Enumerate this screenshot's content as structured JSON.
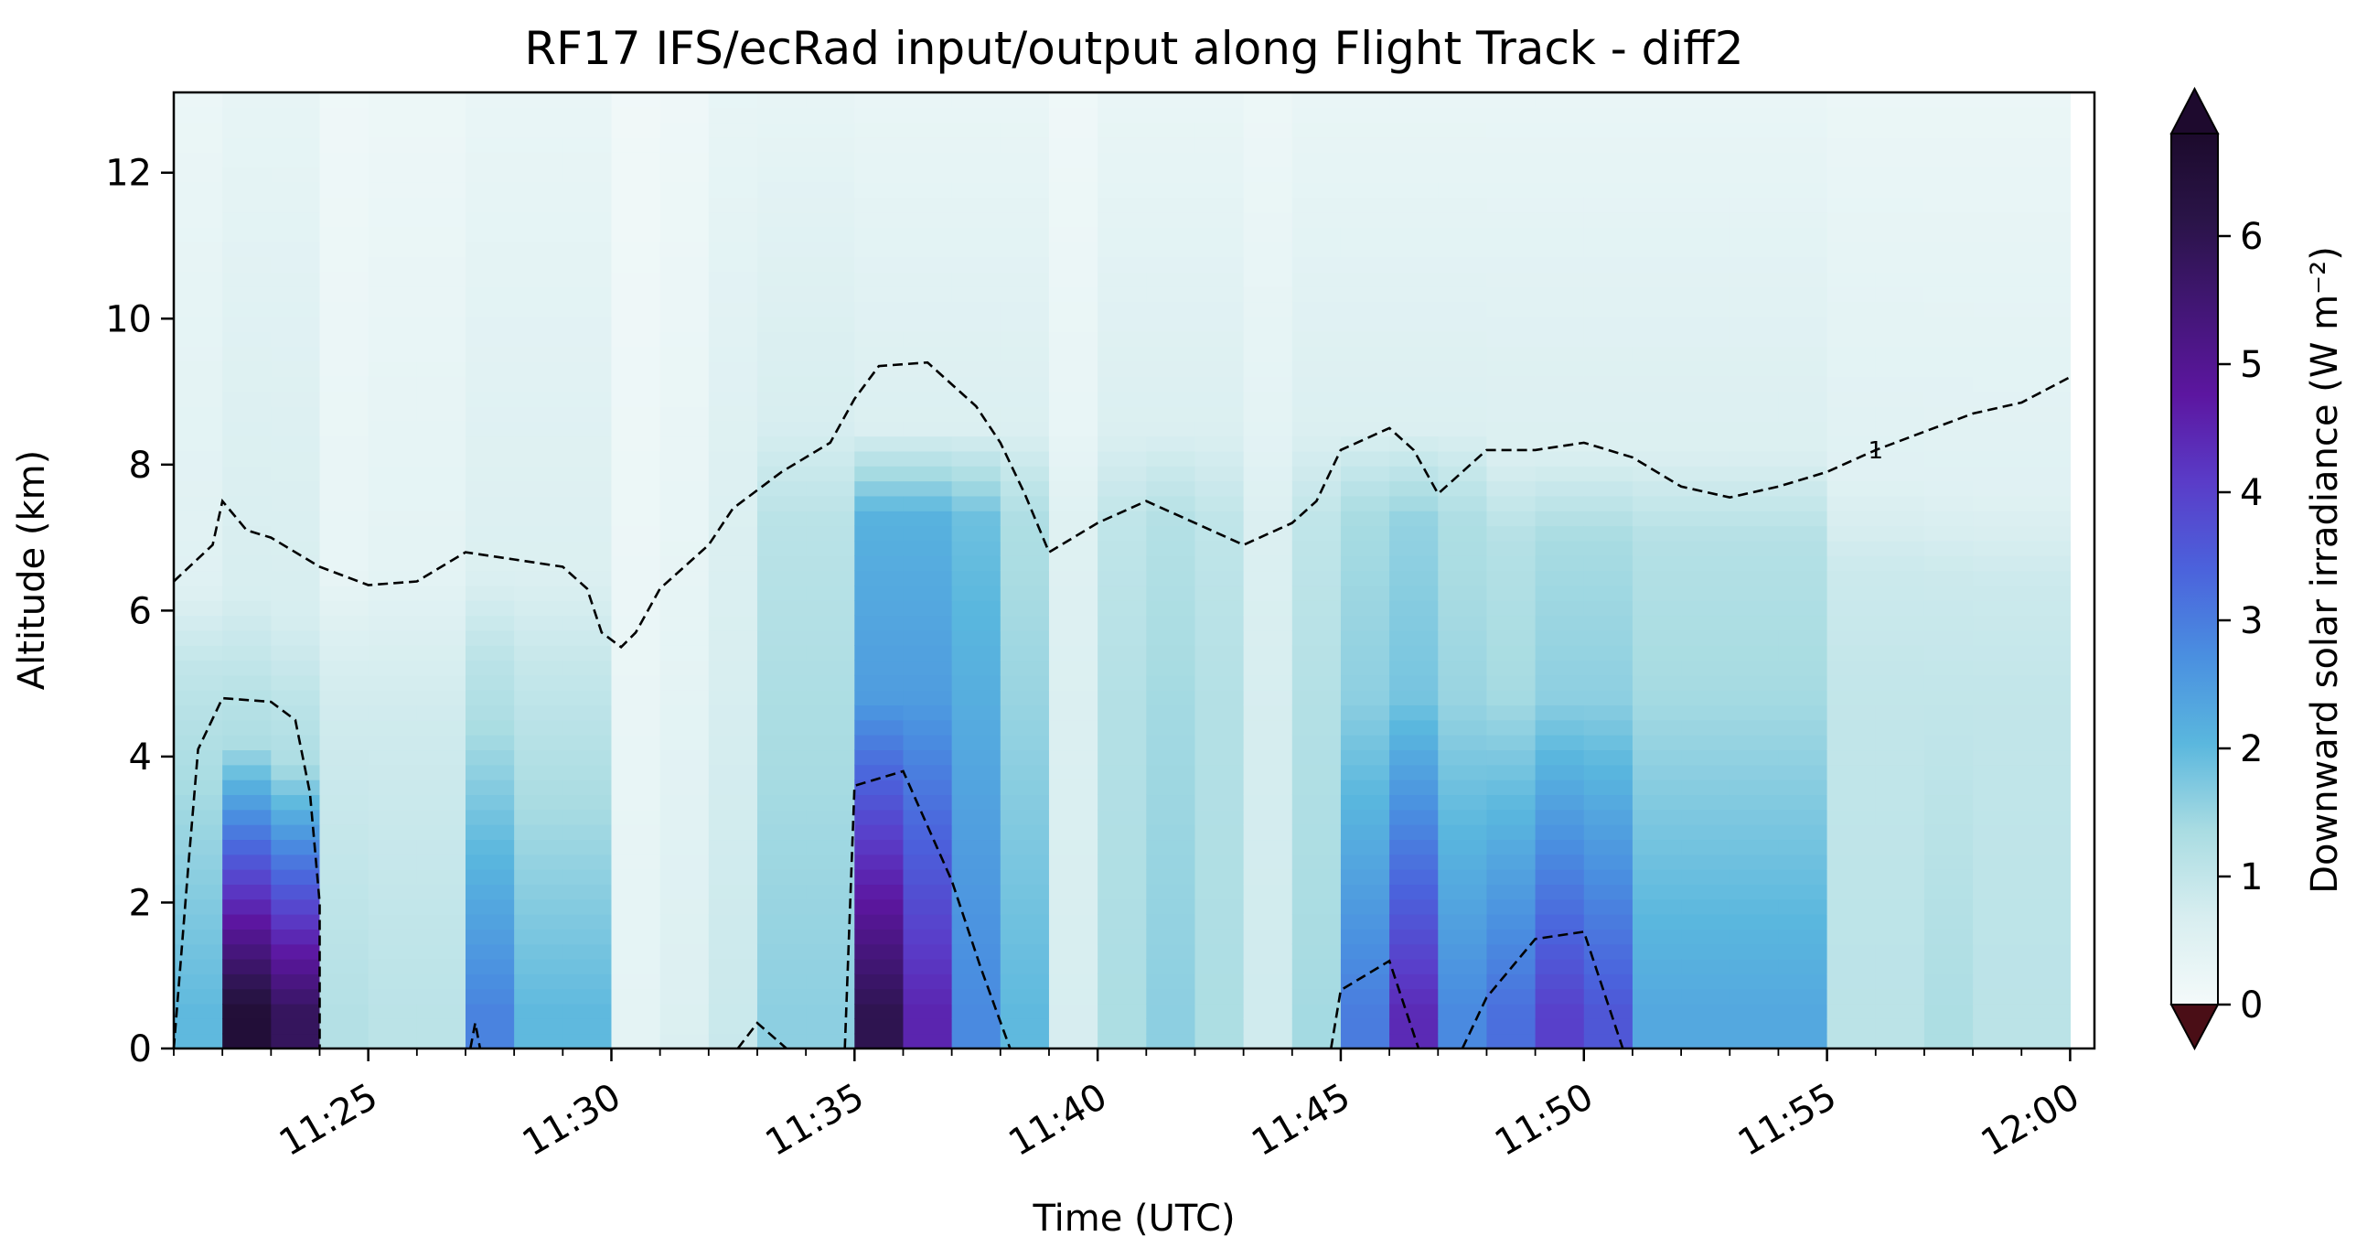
{
  "chart_data": {
    "type": "heatmap",
    "title": "RF17 IFS/ecRad input/output along Flight Track - diff2",
    "xlabel": "Time (UTC)",
    "ylabel": "Altitude (km)",
    "xlim": [
      "11:21",
      "12:00.5"
    ],
    "ylim": [
      0,
      13.1
    ],
    "x_ticks": [
      "11:25",
      "11:30",
      "11:35",
      "11:40",
      "11:45",
      "11:50",
      "11:55",
      "12:00"
    ],
    "y_ticks": [
      "0",
      "2",
      "4",
      "6",
      "8",
      "10",
      "12"
    ],
    "colorbar": {
      "label": "Downward solar irradiance (W m⁻²)",
      "ticks": [
        "0",
        "1",
        "2",
        "3",
        "4",
        "5",
        "6"
      ],
      "range": [
        0,
        6.8
      ],
      "extend": "both",
      "under_color": "#4a0e16",
      "over_color": "#1e0a2e"
    },
    "columns": [
      {
        "time": "11:21.5",
        "top_value": 0.5,
        "mid_value": 1.2,
        "low_value": 2.0,
        "cloud_top_km": 5.2
      },
      {
        "time": "11:22.5",
        "top_value": 0.7,
        "mid_value": 1.3,
        "low_value": 6.5,
        "cloud_top_km": 5.0
      },
      {
        "time": "11:23.5",
        "top_value": 0.7,
        "mid_value": 1.3,
        "low_value": 5.8,
        "cloud_top_km": 4.7
      },
      {
        "time": "11:24.5",
        "top_value": 0.3,
        "mid_value": 0.8,
        "low_value": 1.2,
        "cloud_top_km": 5.3
      },
      {
        "time": "11:25.5",
        "top_value": 0.4,
        "mid_value": 0.8,
        "low_value": 1.1,
        "cloud_top_km": 5.3
      },
      {
        "time": "11:26.5",
        "top_value": 0.4,
        "mid_value": 0.8,
        "low_value": 1.1,
        "cloud_top_km": 5.3
      },
      {
        "time": "11:27.5",
        "top_value": 0.6,
        "mid_value": 1.3,
        "low_value": 2.9,
        "cloud_top_km": 5.3
      },
      {
        "time": "11:28.5",
        "top_value": 0.6,
        "mid_value": 1.1,
        "low_value": 2.0,
        "cloud_top_km": 5.3
      },
      {
        "time": "11:29.5",
        "top_value": 0.6,
        "mid_value": 1.1,
        "low_value": 2.0,
        "cloud_top_km": 5.3
      },
      {
        "time": "11:30.5",
        "top_value": 0.2,
        "mid_value": 0.4,
        "low_value": 0.5,
        "cloud_top_km": 0
      },
      {
        "time": "11:31.5",
        "top_value": 0.3,
        "mid_value": 0.6,
        "low_value": 0.8,
        "cloud_top_km": 0
      },
      {
        "time": "11:32.5",
        "top_value": 0.6,
        "mid_value": 0.9,
        "low_value": 1.0,
        "cloud_top_km": 0
      },
      {
        "time": "11:33.5",
        "top_value": 0.7,
        "mid_value": 1.3,
        "low_value": 1.6,
        "cloud_top_km": 7.3
      },
      {
        "time": "11:34.5",
        "top_value": 0.7,
        "mid_value": 1.3,
        "low_value": 1.6,
        "cloud_top_km": 7.3
      },
      {
        "time": "11:35.5",
        "top_value": 0.6,
        "mid_value": 2.5,
        "low_value": 6.0,
        "cloud_top_km": 7.3
      },
      {
        "time": "11:36.5",
        "top_value": 0.6,
        "mid_value": 2.5,
        "low_value": 4.5,
        "cloud_top_km": 7.3
      },
      {
        "time": "11:37.5",
        "top_value": 0.6,
        "mid_value": 2.2,
        "low_value": 2.8,
        "cloud_top_km": 7.3
      },
      {
        "time": "11:38.5",
        "top_value": 0.6,
        "mid_value": 1.5,
        "low_value": 2.0,
        "cloud_top_km": 7.3
      },
      {
        "time": "11:39.5",
        "top_value": 0.3,
        "mid_value": 0.6,
        "low_value": 0.7,
        "cloud_top_km": 7.3
      },
      {
        "time": "11:40.5",
        "top_value": 0.6,
        "mid_value": 1.2,
        "low_value": 1.3,
        "cloud_top_km": 7.3
      },
      {
        "time": "11:41.5",
        "top_value": 0.6,
        "mid_value": 1.4,
        "low_value": 1.6,
        "cloud_top_km": 7.3
      },
      {
        "time": "11:42.5",
        "top_value": 0.6,
        "mid_value": 1.2,
        "low_value": 1.3,
        "cloud_top_km": 7.3
      },
      {
        "time": "11:43.5",
        "top_value": 0.4,
        "mid_value": 0.7,
        "low_value": 0.8,
        "cloud_top_km": 7.3
      },
      {
        "time": "11:44.5",
        "top_value": 0.6,
        "mid_value": 1.2,
        "low_value": 1.4,
        "cloud_top_km": 7.3
      },
      {
        "time": "11:45.5",
        "top_value": 0.6,
        "mid_value": 1.6,
        "low_value": 3.0,
        "cloud_top_km": 7.3
      },
      {
        "time": "11:46.5",
        "top_value": 0.6,
        "mid_value": 1.8,
        "low_value": 4.4,
        "cloud_top_km": 7.3
      },
      {
        "time": "11:47.5",
        "top_value": 0.6,
        "mid_value": 1.5,
        "low_value": 2.8,
        "cloud_top_km": 7.3
      },
      {
        "time": "11:48.5",
        "top_value": 0.6,
        "mid_value": 1.4,
        "low_value": 3.2,
        "cloud_top_km": 7.0
      },
      {
        "time": "11:49.5",
        "top_value": 0.6,
        "mid_value": 1.6,
        "low_value": 4.0,
        "cloud_top_km": 7.0
      },
      {
        "time": "11:50.5",
        "top_value": 0.6,
        "mid_value": 1.6,
        "low_value": 3.6,
        "cloud_top_km": 7.0
      },
      {
        "time": "11:51.5",
        "top_value": 0.6,
        "mid_value": 1.4,
        "low_value": 2.3,
        "cloud_top_km": 7.0
      },
      {
        "time": "11:52.5",
        "top_value": 0.6,
        "mid_value": 1.4,
        "low_value": 2.3,
        "cloud_top_km": 7.0
      },
      {
        "time": "11:53.5",
        "top_value": 0.6,
        "mid_value": 1.4,
        "low_value": 2.3,
        "cloud_top_km": 7.0
      },
      {
        "time": "11:54.5",
        "top_value": 0.6,
        "mid_value": 1.4,
        "low_value": 2.3,
        "cloud_top_km": 7.0
      },
      {
        "time": "11:55.5",
        "top_value": 0.5,
        "mid_value": 1.0,
        "low_value": 1.1,
        "cloud_top_km": 6.6
      },
      {
        "time": "11:56.5",
        "top_value": 0.5,
        "mid_value": 1.0,
        "low_value": 1.1,
        "cloud_top_km": 6.6
      },
      {
        "time": "11:57.5",
        "top_value": 0.5,
        "mid_value": 1.0,
        "low_value": 1.3,
        "cloud_top_km": 6.5
      },
      {
        "time": "11:58.5",
        "top_value": 0.5,
        "mid_value": 1.0,
        "low_value": 1.1,
        "cloud_top_km": 6.4
      },
      {
        "time": "11:59.5",
        "top_value": 0.5,
        "mid_value": 1.0,
        "low_value": 1.1,
        "cloud_top_km": 6.4
      }
    ],
    "contours": [
      {
        "level": "1",
        "label_at": "11:56",
        "points": [
          [
            "11:21",
            6.4
          ],
          [
            "11:21.8",
            6.9
          ],
          [
            "11:22",
            7.5
          ],
          [
            "11:22.5",
            7.1
          ],
          [
            "11:23",
            7.0
          ],
          [
            "11:24",
            6.6
          ],
          [
            "11:25",
            6.35
          ],
          [
            "11:26",
            6.4
          ],
          [
            "11:27",
            6.8
          ],
          [
            "11:28",
            6.7
          ],
          [
            "11:29",
            6.6
          ],
          [
            "11:29.5",
            6.3
          ],
          [
            "11:29.8",
            5.7
          ],
          [
            "11:30.2",
            5.5
          ],
          [
            "11:30.5",
            5.7
          ],
          [
            "11:31",
            6.3
          ],
          [
            "11:32",
            6.9
          ],
          [
            "11:32.5",
            7.4
          ],
          [
            "11:33.5",
            7.9
          ],
          [
            "11:34.5",
            8.3
          ],
          [
            "11:35",
            8.9
          ],
          [
            "11:35.5",
            9.35
          ],
          [
            "11:36.5",
            9.4
          ],
          [
            "11:37.5",
            8.8
          ],
          [
            "11:38",
            8.3
          ],
          [
            "11:38.5",
            7.6
          ],
          [
            "11:39",
            6.8
          ],
          [
            "11:40",
            7.2
          ],
          [
            "11:41",
            7.5
          ],
          [
            "11:42",
            7.2
          ],
          [
            "11:43",
            6.9
          ],
          [
            "11:44",
            7.2
          ],
          [
            "11:44.5",
            7.5
          ],
          [
            "11:45",
            8.2
          ],
          [
            "11:46",
            8.5
          ],
          [
            "11:46.5",
            8.2
          ],
          [
            "11:47",
            7.6
          ],
          [
            "11:48",
            8.2
          ],
          [
            "11:49",
            8.2
          ],
          [
            "11:50",
            8.3
          ],
          [
            "11:51",
            8.1
          ],
          [
            "11:52",
            7.7
          ],
          [
            "11:53",
            7.55
          ],
          [
            "11:54",
            7.7
          ],
          [
            "11:55",
            7.9
          ],
          [
            "11:56",
            8.2
          ],
          [
            "11:57",
            8.45
          ],
          [
            "11:58",
            8.7
          ],
          [
            "11:59",
            8.85
          ],
          [
            "12:00",
            9.2
          ]
        ]
      },
      {
        "level": "4",
        "points": [
          [
            "11:21",
            0
          ],
          [
            "11:21.3",
            2.5
          ],
          [
            "11:21.5",
            4.1
          ],
          [
            "11:22",
            4.8
          ],
          [
            "11:23",
            4.75
          ],
          [
            "11:23.5",
            4.5
          ],
          [
            "11:23.8",
            3.5
          ],
          [
            "11:24",
            2.0
          ],
          [
            "11:24",
            0
          ]
        ]
      },
      {
        "level": "4",
        "points": [
          [
            "11:27.1",
            0
          ],
          [
            "11:27.2",
            0.35
          ],
          [
            "11:27.3",
            0
          ]
        ]
      },
      {
        "level": "4",
        "points": [
          [
            "11:32.6",
            0
          ],
          [
            "11:33",
            0.35
          ],
          [
            "11:33.6",
            0
          ]
        ]
      },
      {
        "level": "4",
        "points": [
          [
            "11:34.8",
            0
          ],
          [
            "11:35",
            3.6
          ],
          [
            "11:36",
            3.8
          ],
          [
            "11:37",
            2.3
          ],
          [
            "11:37.6",
            1.1
          ],
          [
            "11:38.2",
            0
          ]
        ]
      },
      {
        "level": "4",
        "points": [
          [
            "11:44.8",
            0
          ],
          [
            "11:45",
            0.8
          ],
          [
            "11:46",
            1.2
          ],
          [
            "11:46.6",
            0
          ]
        ]
      },
      {
        "level": "4",
        "points": [
          [
            "11:47.5",
            0
          ],
          [
            "11:48",
            0.7
          ],
          [
            "11:49",
            1.5
          ],
          [
            "11:50",
            1.6
          ],
          [
            "11:50.8",
            0
          ]
        ]
      }
    ]
  },
  "colors": {
    "colormap": [
      "#f4fafa",
      "#d8eef0",
      "#a9dce2",
      "#5ab7de",
      "#4a8fe0",
      "#4b62dc",
      "#5a3cc8",
      "#5c16a0",
      "#421675",
      "#2a1448",
      "#1c0a2c"
    ]
  }
}
